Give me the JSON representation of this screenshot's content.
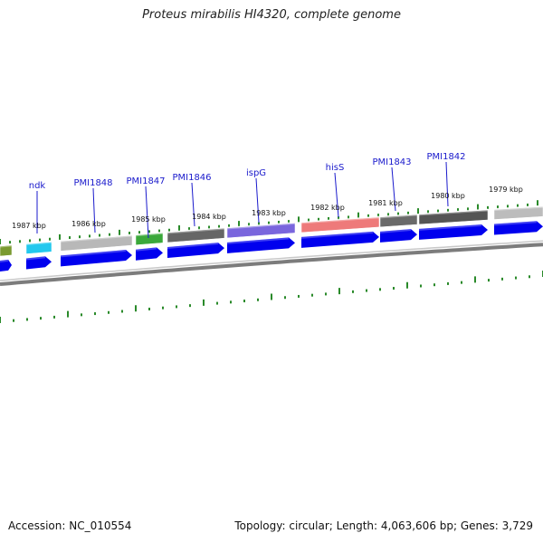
{
  "title": "Proteus mirabilis HI4320, complete genome",
  "accession_label": "Accession: NC_010554",
  "summary_label": "Topology: circular; Length: 4,063,606 bp; Genes: 3,729",
  "colors": {
    "backbone": "#8a8a8a",
    "tick": "#2a8a2a",
    "cds": "#0000ee",
    "label": "#1a1acc"
  },
  "gene_labels": [
    {
      "text": "ndk"
    },
    {
      "text": "PMI1848"
    },
    {
      "text": "PMI1847"
    },
    {
      "text": "PMI1846"
    },
    {
      "text": "ispG"
    },
    {
      "text": "hisS"
    },
    {
      "text": "PMI1843"
    },
    {
      "text": "PMI1842"
    }
  ],
  "kbp_labels": [
    {
      "text": "1987 kbp"
    },
    {
      "text": "1986 kbp"
    },
    {
      "text": "1985 kbp"
    },
    {
      "text": "1984 kbp"
    },
    {
      "text": "1983 kbp"
    },
    {
      "text": "1982 kbp"
    },
    {
      "text": "1981 kbp"
    },
    {
      "text": "1980 kbp"
    },
    {
      "text": "1979 kbp"
    }
  ],
  "feature_blocks": [
    {
      "color": "#7a9a30"
    },
    {
      "color": "#22c8ee"
    },
    {
      "color": "#b8b8b8"
    },
    {
      "color": "#3aa83a"
    },
    {
      "color": "#666666"
    },
    {
      "color": "#7a66dd"
    },
    {
      "color": "#ee7a7a"
    },
    {
      "color": "#6a6a6a"
    },
    {
      "color": "#555555"
    },
    {
      "color": "#bcbcbc"
    }
  ]
}
